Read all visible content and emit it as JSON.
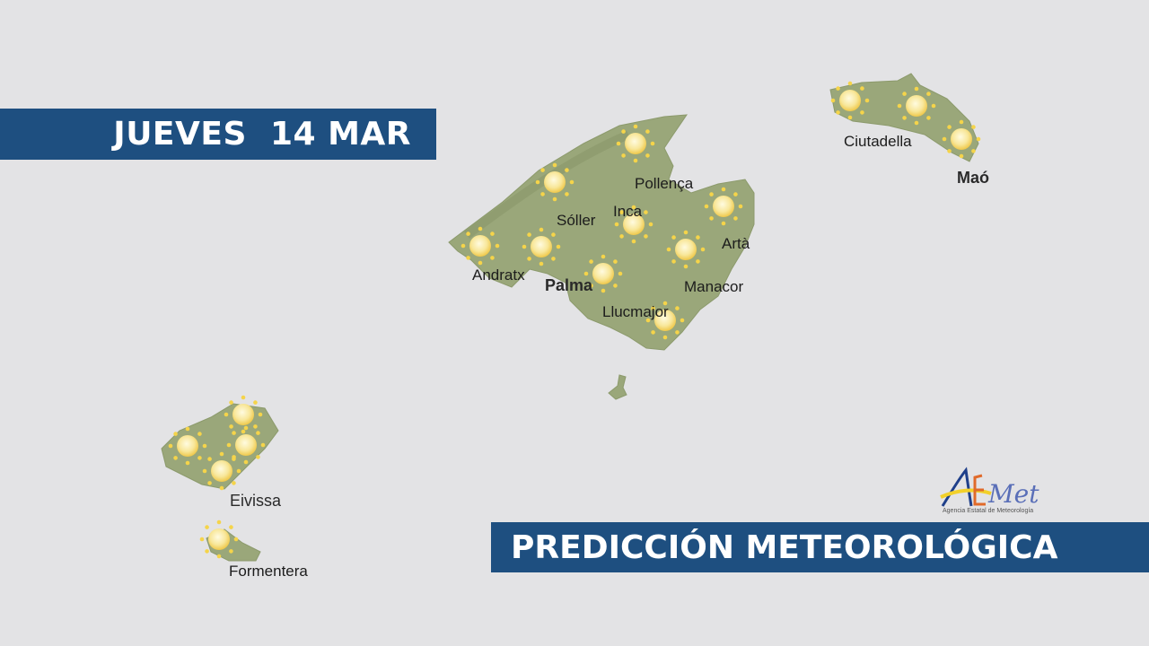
{
  "header": {
    "date": "JUEVES  14 MAR"
  },
  "footer": {
    "title": "PREDICCIÓN METEOROLÓGICA"
  },
  "logo": {
    "text": "AEmet",
    "subtitle": "Agencia Estatal de Meteorología"
  },
  "map": {
    "labels": [
      "Pollença",
      "Sóller",
      "Inca",
      "Artà",
      "Andratx",
      "Palma",
      "Manacor",
      "Llucmajor",
      "Ciutadella",
      "Maó",
      "Eivissa",
      "Formentera"
    ],
    "weather_icon": "sun-icon",
    "colors": {
      "sea": "#e3e3e5",
      "land": "#9aa77a",
      "banner": "#1e4f80",
      "sun": "#f5d44a"
    }
  }
}
